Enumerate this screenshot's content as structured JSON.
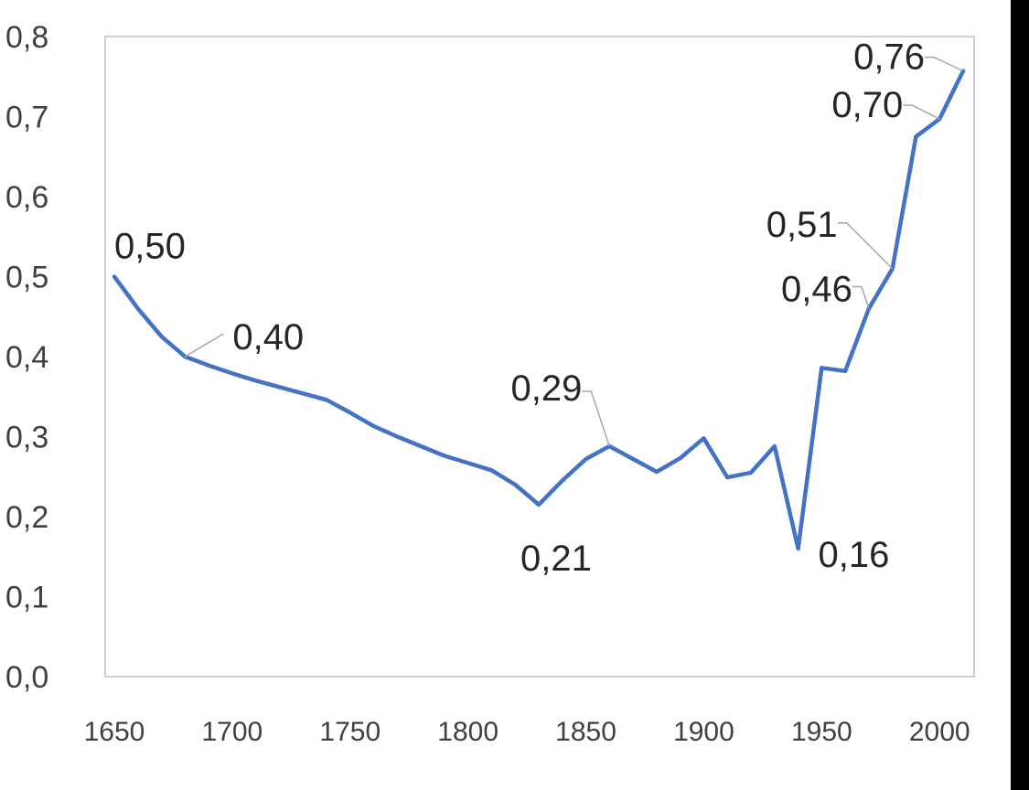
{
  "chart_data": {
    "type": "line",
    "title": "",
    "xlabel": "",
    "ylabel": "",
    "xlim": [
      1650,
      2010
    ],
    "ylim": [
      0,
      0.8
    ],
    "grid": false,
    "legend": "none",
    "y_ticks": [
      "0,0",
      "0,1",
      "0,2",
      "0,3",
      "0,4",
      "0,5",
      "0,6",
      "0,7",
      "0,8"
    ],
    "x_ticks": [
      "1650",
      "1700",
      "1750",
      "1800",
      "1850",
      "1900",
      "1950",
      "2000"
    ],
    "series": [
      {
        "color": "#4472c4",
        "x": [
          1650,
          1660,
          1670,
          1680,
          1690,
          1700,
          1710,
          1720,
          1730,
          1740,
          1750,
          1760,
          1770,
          1780,
          1790,
          1800,
          1810,
          1820,
          1830,
          1840,
          1850,
          1860,
          1870,
          1880,
          1890,
          1900,
          1910,
          1920,
          1930,
          1940,
          1950,
          1960,
          1970,
          1980,
          1990,
          2000,
          2010
        ],
        "y": [
          0.5,
          0.46,
          0.425,
          0.4,
          0.389,
          0.379,
          0.37,
          0.362,
          0.354,
          0.346,
          0.33,
          0.313,
          0.3,
          0.288,
          0.276,
          0.267,
          0.258,
          0.24,
          0.215,
          0.245,
          0.272,
          0.288,
          0.272,
          0.256,
          0.273,
          0.298,
          0.249,
          0.255,
          0.288,
          0.16,
          0.386,
          0.382,
          0.46,
          0.51,
          0.675,
          0.697,
          0.757
        ]
      }
    ],
    "data_labels": [
      {
        "x": 1650,
        "y": 0.5,
        "text": "0,50"
      },
      {
        "x": 1680,
        "y": 0.4,
        "text": "0,40"
      },
      {
        "x": 1830,
        "y": 0.215,
        "text": "0,21"
      },
      {
        "x": 1860,
        "y": 0.288,
        "text": "0,29"
      },
      {
        "x": 1940,
        "y": 0.16,
        "text": "0,16"
      },
      {
        "x": 1970,
        "y": 0.46,
        "text": "0,46"
      },
      {
        "x": 1980,
        "y": 0.51,
        "text": "0,51"
      },
      {
        "x": 2000,
        "y": 0.697,
        "text": "0,70"
      },
      {
        "x": 2010,
        "y": 0.757,
        "text": "0,76"
      }
    ]
  }
}
